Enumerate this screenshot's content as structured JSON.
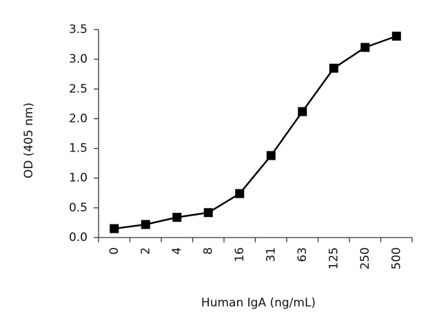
{
  "chart_data": {
    "type": "line",
    "x_label": "Human IgA (ng/mL)",
    "y_label": "OD (405 nm)",
    "categories": [
      "0",
      "2",
      "4",
      "8",
      "16",
      "31",
      "63",
      "125",
      "250",
      "500"
    ],
    "series": [
      {
        "color": "#000000",
        "values": [
          0.15,
          0.22,
          0.34,
          0.42,
          0.74,
          1.38,
          2.12,
          2.85,
          3.2,
          3.39
        ]
      }
    ],
    "ylim": [
      0,
      3.5
    ],
    "yticks": [
      {
        "value": 0,
        "label": "0.0"
      },
      0.5,
      {
        "value": 1,
        "label": "1.0"
      },
      1.5,
      {
        "value": 2,
        "label": "2.0"
      },
      2.5,
      {
        "value": 3,
        "label": "3.0"
      },
      3.5
    ],
    "grid": false
  }
}
